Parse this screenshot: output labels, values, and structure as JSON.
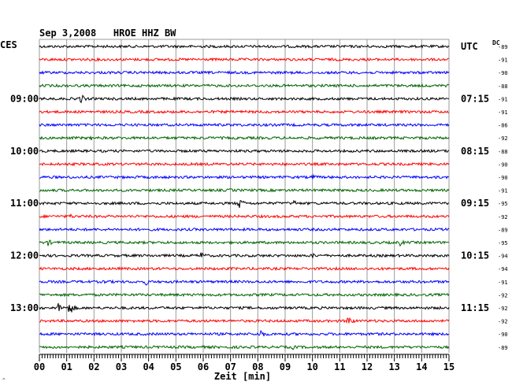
{
  "chart_data": {
    "type": "line",
    "title": "Sep 3,2008   HROE HHZ BW",
    "left_timezone": "CES",
    "right_timezone": "UTC",
    "dc_label": "DC",
    "xlabel": "Zeit [min]",
    "x_ticks": [
      "00",
      "01",
      "02",
      "03",
      "04",
      "05",
      "06",
      "07",
      "08",
      "09",
      "10",
      "11",
      "12",
      "13",
      "14",
      "15"
    ],
    "xlim": [
      0,
      15
    ],
    "grid": true,
    "trace_colors": [
      "#000000",
      "#ff0000",
      "#0000ff",
      "#006400"
    ],
    "left_hour_labels": [
      {
        "row": 4,
        "text": "09:00"
      },
      {
        "row": 8,
        "text": "10:00"
      },
      {
        "row": 12,
        "text": "11:00"
      },
      {
        "row": 16,
        "text": "12:00"
      },
      {
        "row": 20,
        "text": "13:00"
      }
    ],
    "right_hour_labels": [
      {
        "row": 0,
        "text": "UTC"
      },
      {
        "row": 4,
        "text": "07:15"
      },
      {
        "row": 8,
        "text": "08:15"
      },
      {
        "row": 12,
        "text": "09:15"
      },
      {
        "row": 16,
        "text": "10:15"
      },
      {
        "row": 20,
        "text": "11:15"
      }
    ],
    "dc_values": [
      "-89",
      "-91",
      "-90",
      "-88",
      "-91",
      "-91",
      "-86",
      "-92",
      "-88",
      "-90",
      "-90",
      "-91",
      "-95",
      "-92",
      "-89",
      "-95",
      "-94",
      "-94",
      "-91",
      "-92",
      "-92",
      "-92",
      "-90",
      "-89"
    ],
    "events": [
      {
        "row": 4,
        "minute": 1.5,
        "amplitude": 7
      },
      {
        "row": 7,
        "minute": 1.9,
        "amplitude": 3
      },
      {
        "row": 10,
        "minute": 10.0,
        "amplitude": 4
      },
      {
        "row": 11,
        "minute": 7.0,
        "amplitude": 3
      },
      {
        "row": 12,
        "minute": 7.3,
        "amplitude": 8
      },
      {
        "row": 12,
        "minute": 9.3,
        "amplitude": 5
      },
      {
        "row": 13,
        "minute": 1.1,
        "amplitude": 4
      },
      {
        "row": 15,
        "minute": 0.3,
        "amplitude": 5
      },
      {
        "row": 15,
        "minute": 13.2,
        "amplitude": 5
      },
      {
        "row": 16,
        "minute": 5.9,
        "amplitude": 6
      },
      {
        "row": 16,
        "minute": 10.0,
        "amplitude": 4
      },
      {
        "row": 18,
        "minute": 3.9,
        "amplitude": 5
      },
      {
        "row": 18,
        "minute": 2.4,
        "amplitude": 4
      },
      {
        "row": 20,
        "minute": 0.7,
        "amplitude": 7
      },
      {
        "row": 20,
        "minute": 1.1,
        "amplitude": 10
      },
      {
        "row": 21,
        "minute": 11.3,
        "amplitude": 8
      },
      {
        "row": 22,
        "minute": 8.1,
        "amplitude": 7
      },
      {
        "row": 22,
        "minute": 12.3,
        "amplitude": 3
      },
      {
        "row": 23,
        "minute": 9.3,
        "amplitude": 4
      }
    ]
  }
}
